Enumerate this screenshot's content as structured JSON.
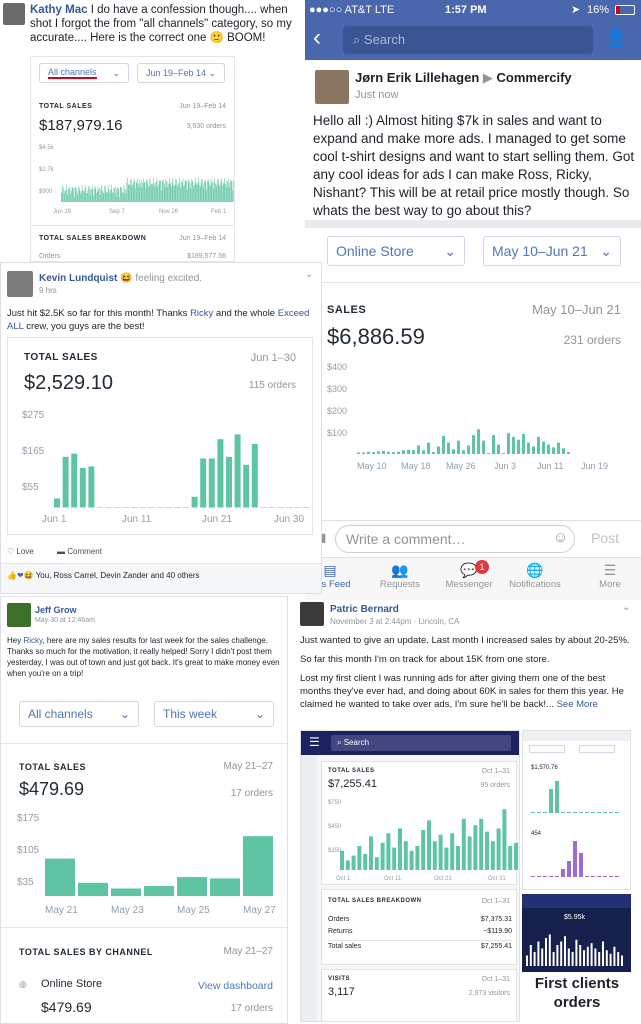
{
  "kathy": {
    "name": "Kathy Mac",
    "text": "I do have a confession though.... when shot I forgot the from \"all channels\" category, so my accurate.... Here is the correct one 🙂 BOOM!",
    "sel1": "All channels",
    "sel2": "Jun 19–Feb 14",
    "total_label": "TOTAL SALES",
    "range": "Jun 19–Feb 14",
    "value": "$187,979.16",
    "orders": "3,630 orders",
    "y": [
      "$4.5k",
      "$2.7k",
      "$900"
    ],
    "x": [
      "Jun 19",
      "Sep 7",
      "Nov 26",
      "Feb 1"
    ],
    "breakdown": "TOTAL SALES BREAKDOWN",
    "breakdown_range": "Jun 19–Feb 14",
    "orders_label": "Orders",
    "orders_val": "$189,577.56"
  },
  "phone": {
    "carrier": "●●●○○ AT&T  LTE",
    "time": "1:57 PM",
    "battery": "16%",
    "search": "Search",
    "author": "Jørn Erik Lillehagen",
    "arrow": "▶",
    "group": "Commercify",
    "time_post": "Just now",
    "body": "Hello all :) Almost hiting $7k in sales and want to expand and make more ads. I managed to get some cool t-shirt designs and want to start selling them. Got any cool ideas for ads I can make Ross, Ricky, Nishant? This will be at retail price mostly though. So whats the best way to go about this?",
    "sel1": "Online Store",
    "sel2": "May 10–Jun 21",
    "sales": "SALES",
    "range": "May 10–Jun 21",
    "value": "$6,886.59",
    "orders": "231 orders",
    "y": [
      "$400",
      "$300",
      "$200",
      "$100"
    ],
    "x": [
      "May 10",
      "May 18",
      "May 26",
      "Jun 3",
      "Jun 11",
      "Jun 19"
    ],
    "comment": "Write a comment…",
    "post": "Post",
    "tabs": [
      "ews Feed",
      "Requests",
      "Messenger",
      "Notifications",
      "More"
    ],
    "badge": "1"
  },
  "kevin": {
    "name": "Kevin Lundquist",
    "feeling": "😆 feeling excited.",
    "time": "9 hrs",
    "text1": "Just hit $2.5K so far for this month! Thanks ",
    "ricky": "Ricky",
    "text2": " and the whole ",
    "exceed": "Exceed ALL",
    "text3": " crew, you guys are the best!",
    "total": "TOTAL SALES",
    "range": "Jun 1–30",
    "value": "$2,529.10",
    "orders": "115 orders",
    "y": [
      "$275",
      "$165",
      "$55"
    ],
    "x": [
      "Jun 1",
      "Jun 11",
      "Jun 21",
      "Jun 30"
    ],
    "love": "Love",
    "comment": "Comment",
    "reactions": "You, Ross Carrel, Devin Zander and 40 others"
  },
  "jeff": {
    "name": "Jeff Grow",
    "time": "May 30 at 12:46am",
    "text1": "Hey ",
    "ricky": "Ricky",
    "text2": ", here are my sales results for last week for the sales challenge. Thanks so much for the motivation, it really helped! Sorry I didn't post them yesterday, I was out of town and just got back. It's great to make money even when you're on a trip!",
    "sel1": "All channels",
    "sel2": "This week",
    "total": "TOTAL SALES",
    "range": "May 21–27",
    "value": "$479.69",
    "orders": "17 orders",
    "y": [
      "$175",
      "$105",
      "$35"
    ],
    "x": [
      "May 21",
      "May 23",
      "May 25",
      "May 27"
    ],
    "bychannel": "TOTAL SALES BY CHANNEL",
    "bych_range": "May 21–27",
    "store": "Online Store",
    "view": "View dashboard",
    "store_val": "$479.69",
    "store_orders": "17 orders"
  },
  "patric": {
    "name": "Patric Bernard",
    "time": "November 3 at 2:44pm · Lincoln, CA",
    "p1": "Just wanted to give an update. Last month I increased sales by about 20-25%.",
    "p2": "So far this month I'm on track for about 15K from one store.",
    "p3": "Lost my first client I was running ads for after giving them one of the best months they've ever had, and doing about 60K in sales for them this year. He claimed he wanted to take over ads, I'm sure he'll be back!...",
    "more": "See More",
    "search": "Search",
    "total": "TOTAL SALES",
    "range": "Oct 1–31",
    "value": "$7,255.41",
    "orders": "95 orders",
    "y": [
      "$750",
      "$450",
      "$150"
    ],
    "x": [
      "Oct 1",
      "Oct 11",
      "Oct 21",
      "Oct 31"
    ],
    "breakdown": "TOTAL SALES BREAKDOWN",
    "b_range": "Oct 1–31",
    "rows": [
      [
        "Orders",
        "$7,375.31"
      ],
      [
        "Returns",
        "−$119.90"
      ],
      [
        "Total sales",
        "$7,255.41"
      ]
    ],
    "visits": "VISITS",
    "v_range": "Oct 1–31",
    "visits_val": "3,117",
    "visitors": "2,973 visitors",
    "first": "First clients orders",
    "small_val": "$1,570.76",
    "small_val2": "$5.95k",
    "small_visits": "454"
  }
}
